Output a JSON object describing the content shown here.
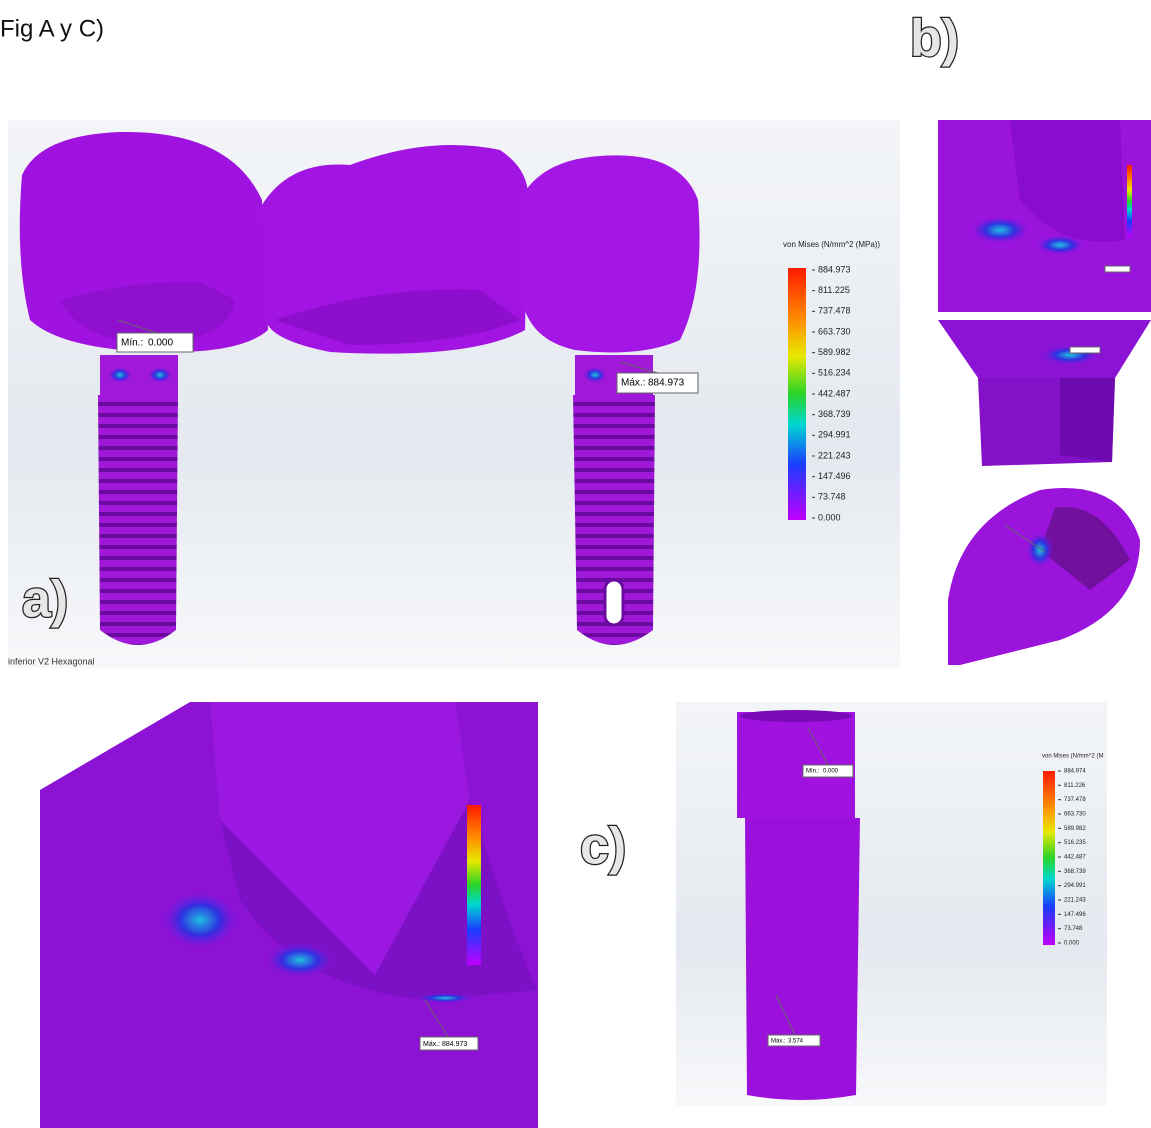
{
  "header": {
    "title": "Fig A y C)"
  },
  "panel_a": {
    "label": "a)",
    "caption": "inferior V2 Hexagonal",
    "legend": {
      "title": "von Mises (N/mm^2 (MPa))",
      "ticks": [
        "884.973",
        "811.225",
        "737.478",
        "663.730",
        "589.982",
        "516.234",
        "442.487",
        "368.739",
        "294.991",
        "221.243",
        "147.496",
        "73.748",
        "0.000"
      ]
    },
    "min": {
      "label": "Mín.:",
      "value": "0.000"
    },
    "max": {
      "label": "Máx.:",
      "value": "884.973"
    }
  },
  "panel_b": {
    "label": "b)"
  },
  "panel_c": {
    "label": "c)",
    "detail": {
      "max": {
        "label": "Máx.:",
        "value": "884.973"
      }
    },
    "tube": {
      "legend": {
        "title": "von Mises (N/mm^2 (M",
        "ticks": [
          "884.974",
          "811.226",
          "737.478",
          "663.730",
          "589.982",
          "516.235",
          "442.487",
          "368.739",
          "294.991",
          "221.243",
          "147.496",
          "73.748",
          "0.000"
        ]
      },
      "min": {
        "label": "Mín.:",
        "value": "0.000"
      },
      "max": {
        "label": "Máx.:",
        "value": "3.574"
      }
    }
  }
}
